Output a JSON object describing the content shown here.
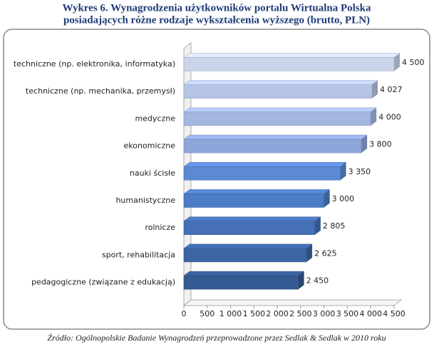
{
  "chart_data": {
    "type": "hbar3d",
    "title": [
      "Wykres 6. Wynagrodzenia użytkowników portalu Wirtualna Polska",
      "posiadających różne rodzaje wykształcenia wyższego (brutto, PLN)"
    ],
    "source": "Źródło: Ogólnopolskie Badanie Wynagrodzeń przeprowadzone przez Sedlak & Sedlak w 2010 roku",
    "categories": [
      "techniczne (np. elektronika, informatyka)",
      "techniczne (np. mechanika, przemysł)",
      "medyczne",
      "ekonomiczne",
      "nauki ścisłe",
      "humanistyczne",
      "rolnicze",
      "sport, rehabilitacja",
      "pedagogiczne (związane z edukacją)"
    ],
    "values": [
      4500,
      4027,
      4000,
      3800,
      3350,
      3000,
      2805,
      2625,
      2450
    ],
    "value_labels": [
      "4 500",
      "4 027",
      "4 000",
      "3 800",
      "3 350",
      "3 000",
      "2 805",
      "2 625",
      "2 450"
    ],
    "colors": [
      "#c9d3ea",
      "#b6c5e6",
      "#a3b7e0",
      "#8ea6da",
      "#5b89d2",
      "#4d7cc6",
      "#4570b6",
      "#3d65a6",
      "#365a94"
    ],
    "xlim": [
      0,
      4500
    ],
    "xticks": [
      0,
      500,
      {
        "value": 1000,
        "label": "1 000"
      },
      {
        "value": 1500,
        "label": "1 500"
      },
      {
        "value": 2000,
        "label": "2 000"
      },
      {
        "value": 2500,
        "label": "2 500"
      },
      {
        "value": 3000,
        "label": "3 000"
      },
      {
        "value": 3500,
        "label": "3 500"
      },
      {
        "value": 4000,
        "label": "4 000"
      },
      {
        "value": 4500,
        "label": "4 500"
      }
    ]
  }
}
